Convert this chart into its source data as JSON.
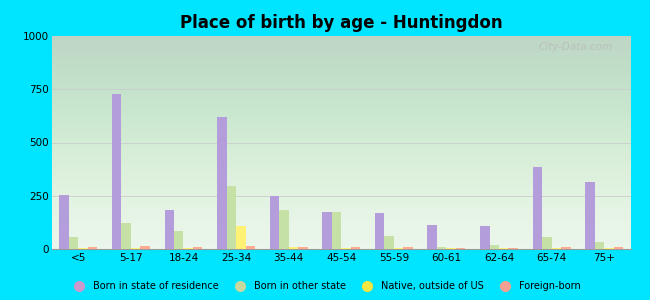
{
  "title": "Place of birth by age - Huntingdon",
  "background_color": "#00e5ff",
  "categories": [
    "<5",
    "5-17",
    "18-24",
    "25-34",
    "35-44",
    "45-54",
    "55-59",
    "60-61",
    "62-64",
    "65-74",
    "75+"
  ],
  "series": {
    "Born in state of residence": {
      "values": [
        255,
        730,
        185,
        620,
        250,
        175,
        170,
        115,
        110,
        385,
        315
      ],
      "color": "#b39ddb"
    },
    "Born in other state": {
      "values": [
        55,
        120,
        85,
        295,
        185,
        175,
        60,
        8,
        20,
        55,
        35
      ],
      "color": "#c5e1a5"
    },
    "Native, outside of US": {
      "values": [
        5,
        5,
        5,
        110,
        8,
        5,
        5,
        5,
        5,
        5,
        5
      ],
      "color": "#fff176"
    },
    "Foreign-born": {
      "values": [
        8,
        12,
        10,
        12,
        8,
        8,
        8,
        5,
        5,
        8,
        10
      ],
      "color": "#ffab91"
    }
  },
  "ylim": [
    0,
    1000
  ],
  "yticks": [
    0,
    250,
    500,
    750,
    1000
  ],
  "bar_width": 0.18,
  "watermark": "City-Data.com",
  "legend_colors": [
    "#cc99cc",
    "#c8d9a0",
    "#f5e642",
    "#f5a090"
  ]
}
